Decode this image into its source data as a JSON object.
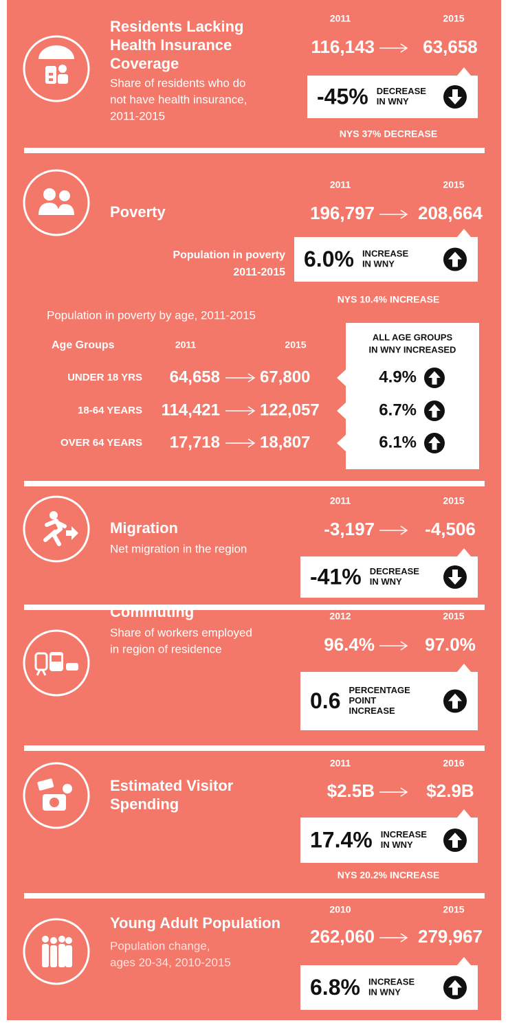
{
  "sections": [
    {
      "title": [
        "Residents Lacking",
        "Health Insurance",
        "Coverage"
      ],
      "subtitle": [
        "Share of residents who do",
        "not have health insurance,",
        "2011-2015"
      ],
      "years": [
        "2011",
        "2015"
      ],
      "values": [
        "116,143",
        "63,658"
      ],
      "change": "-45%",
      "change_label": [
        "DECREASE",
        "IN WNY"
      ],
      "note": "NYS 37% DECREASE"
    },
    {
      "title": [
        "Poverty"
      ],
      "caption": [
        "Population in poverty",
        "2011-2015"
      ],
      "years": [
        "2011",
        "2015"
      ],
      "values": [
        "196,797",
        "208,664"
      ],
      "change": "6.0%",
      "change_label": [
        "INCREASE",
        "IN WNY"
      ],
      "note": "NYS 10.4% INCREASE"
    },
    {
      "title": [
        "Migration"
      ],
      "subtitle": [
        "Net migration in the region"
      ],
      "years": [
        "2011",
        "2015"
      ],
      "values": [
        "-3,197",
        "-4,506"
      ],
      "change": "-41%",
      "change_label": [
        "DECREASE",
        "IN WNY"
      ]
    },
    {
      "title": [
        "Commuting"
      ],
      "subtitle": [
        "Share of workers employed",
        "in region of residence"
      ],
      "years": [
        "2012",
        "2015"
      ],
      "values": [
        "96.4%",
        "97.0%"
      ],
      "change": "0.6",
      "change_label": [
        "PERCENTAGE",
        "POINT",
        "INCREASE"
      ]
    },
    {
      "title": [
        "Estimated Visitor",
        "Spending"
      ],
      "years": [
        "2011",
        "2016"
      ],
      "values": [
        "$2.5B",
        "$2.9B"
      ],
      "change": "17.4%",
      "change_label": [
        "INCREASE",
        "IN WNY"
      ],
      "note": "NYS 20.2% INCREASE"
    },
    {
      "title": [
        "Young Adult Population"
      ],
      "subtitle": [
        "Population change,",
        "ages 20-34, 2010-2015"
      ],
      "years": [
        "2010",
        "2015"
      ],
      "values": [
        "262,060",
        "279,967"
      ],
      "change": "6.8%",
      "change_label": [
        "INCREASE",
        "IN WNY"
      ]
    }
  ],
  "poverty_by_age": {
    "caption": "Population in poverty by age, 2011-2015",
    "headers": [
      "Age Groups",
      "2011",
      "2015"
    ],
    "box_title": [
      "ALL AGE GROUPS",
      "IN WNY INCREASED"
    ],
    "rows": [
      [
        "UNDER 18 YRS",
        "64,658",
        "67,800",
        "4.9%"
      ],
      [
        "18-64 YEARS",
        "114,421",
        "122,057",
        "6.7%"
      ],
      [
        "OVER 64 YEARS",
        "17,718",
        "18,807",
        "6.1%"
      ]
    ]
  }
}
